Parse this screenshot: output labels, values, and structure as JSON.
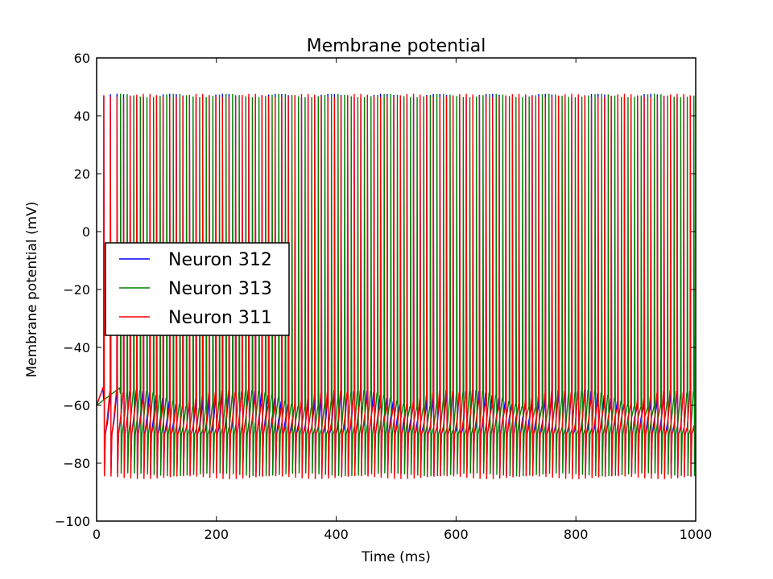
{
  "chart_data": {
    "type": "line",
    "title": "Membrane potential",
    "xlabel": "Time (ms)",
    "ylabel": "Membrane potential (mV)",
    "xlim": [
      0,
      1000
    ],
    "ylim": [
      -100,
      60
    ],
    "xticks": [
      0,
      200,
      400,
      600,
      800,
      1000
    ],
    "yticks": [
      60,
      40,
      20,
      0,
      -20,
      -40,
      -60,
      -80,
      -100
    ],
    "xtick_labels": [
      "0",
      "200",
      "400",
      "600",
      "800",
      "1000"
    ],
    "ytick_labels": [
      "60",
      "40",
      "20",
      "0",
      "−20",
      "−40",
      "−60",
      "−80",
      "−100"
    ],
    "grid": false,
    "legend_position": "center-left",
    "series": [
      {
        "name": "Neuron 312",
        "color": "#0000ff",
        "resting_potential": -60,
        "first_spike_time": 12,
        "spike_peak": 47,
        "spike_trough": -84,
        "post_spike_minimum": -72,
        "interspike_interval": 11,
        "spike_train": "regular"
      },
      {
        "name": "Neuron 313",
        "color": "#008000",
        "resting_potential": -60,
        "first_spike_time": 40,
        "spike_peak": 47,
        "spike_trough": -84,
        "post_spike_minimum": -72,
        "interspike_interval": 11,
        "spike_train": "regular"
      },
      {
        "name": "Neuron 311",
        "color": "#ff0000",
        "resting_potential": -60,
        "first_spike_time": 12,
        "spike_peak": 47,
        "spike_trough": -85,
        "post_spike_minimum": -72,
        "interspike_interval": 11,
        "spike_train": "regular"
      }
    ]
  }
}
